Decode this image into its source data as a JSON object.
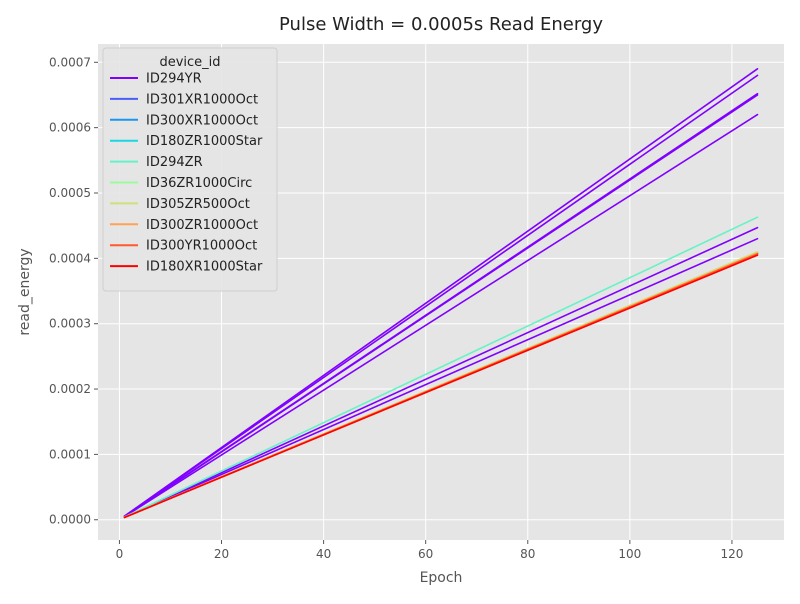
{
  "chart_data": {
    "type": "line",
    "title": "Pulse Width = 0.0005s Read Energy",
    "xlabel": "Epoch",
    "ylabel": "read_energy",
    "xlim": [
      -4.2,
      130.2
    ],
    "ylim": [
      -3.1e-05,
      0.000728
    ],
    "xticks": [
      0,
      20,
      40,
      60,
      80,
      100,
      120
    ],
    "xtick_labels": [
      "0",
      "20",
      "40",
      "60",
      "80",
      "100",
      "120"
    ],
    "yticks": [
      0,
      0.0001,
      0.0002,
      0.0003,
      0.0004,
      0.0005,
      0.0006,
      0.0007
    ],
    "ytick_labels": [
      "0.0000",
      "0.0001",
      "0.0002",
      "0.0003",
      "0.0004",
      "0.0005",
      "0.0006",
      "0.0007"
    ],
    "grid": true,
    "background": "#e5e5e5",
    "legend": {
      "title": "device_id",
      "placement": "top-left"
    },
    "series": [
      {
        "name": "ID294YR",
        "color": "#8000ff",
        "x": [
          1,
          125
        ],
        "y": [
          5.5e-06,
          0.00069
        ]
      },
      {
        "name": "",
        "color": "#8000ff",
        "x": [
          1,
          125
        ],
        "y": [
          5.5e-06,
          0.00068
        ]
      },
      {
        "name": "",
        "color": "#8000ff",
        "x": [
          1,
          125
        ],
        "y": [
          5.2e-06,
          0.000652
        ]
      },
      {
        "name": "",
        "color": "#8000ff",
        "x": [
          1,
          125
        ],
        "y": [
          5e-06,
          0.00065
        ]
      },
      {
        "name": "",
        "color": "#8000ff",
        "x": [
          1,
          125
        ],
        "y": [
          4.8e-06,
          0.00062
        ]
      },
      {
        "name": "",
        "color": "#8000ff",
        "x": [
          1,
          125
        ],
        "y": [
          4.2e-06,
          0.000447
        ]
      },
      {
        "name": "",
        "color": "#8000ff",
        "x": [
          1,
          125
        ],
        "y": [
          4e-06,
          0.00043
        ]
      },
      {
        "name": "ID301XR1000Oct",
        "color": "#4a5ef7",
        "x": [
          1,
          125
        ],
        "y": [
          3.8e-06,
          0.000408
        ]
      },
      {
        "name": "ID300XR1000Oct",
        "color": "#1996f3",
        "x": [
          1,
          125
        ],
        "y": [
          3.8e-06,
          0.000408
        ]
      },
      {
        "name": "ID180ZR1000Star",
        "color": "#1ad8e3",
        "x": [
          1,
          125
        ],
        "y": [
          3.7e-06,
          0.000407
        ]
      },
      {
        "name": "ID294ZR",
        "color": "#66f2c7",
        "x": [
          1,
          125
        ],
        "y": [
          4.2e-06,
          0.000463
        ]
      },
      {
        "name": "ID36ZR1000Circ",
        "color": "#9bfc9e",
        "x": [
          1,
          125
        ],
        "y": [
          3.7e-06,
          0.000409
        ]
      },
      {
        "name": "ID305ZR500Oct",
        "color": "#cde07a",
        "x": [
          1,
          125
        ],
        "y": [
          3.7e-06,
          0.00041
        ]
      },
      {
        "name": "ID300ZR1000Oct",
        "color": "#ffa256",
        "x": [
          1,
          125
        ],
        "y": [
          3.7e-06,
          0.000408
        ]
      },
      {
        "name": "ID300YR1000Oct",
        "color": "#ff5a2e",
        "x": [
          1,
          125
        ],
        "y": [
          3.7e-06,
          0.000407
        ]
      },
      {
        "name": "ID180XR1000Star",
        "color": "#ff0000",
        "x": [
          1,
          125
        ],
        "y": [
          3.5e-06,
          0.000405
        ]
      }
    ]
  }
}
